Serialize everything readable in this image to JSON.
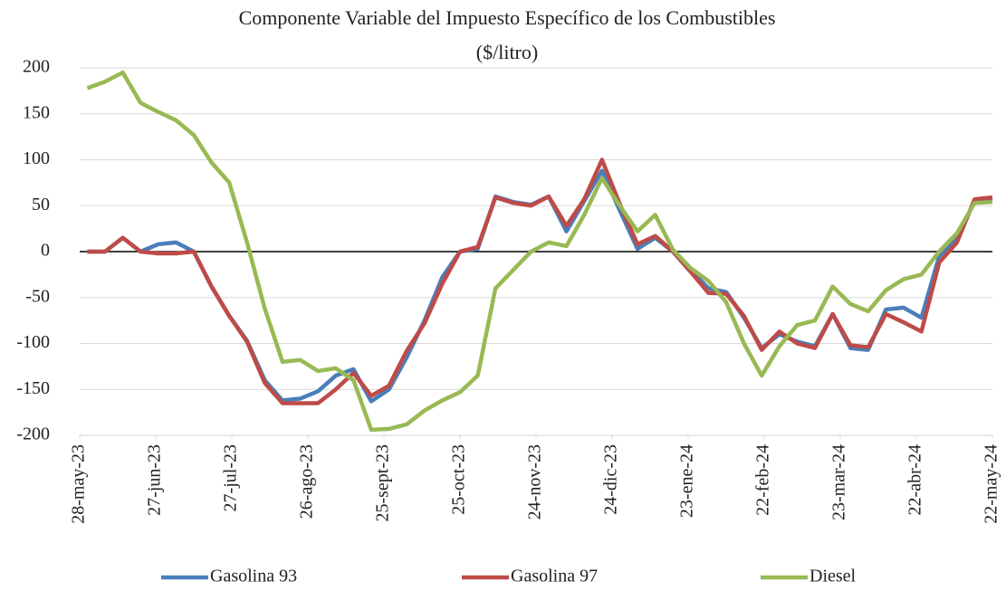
{
  "chart_data": {
    "type": "line",
    "title": "Componente Variable del Impuesto Específico de los Combustibles",
    "subtitle": "($/litro)",
    "x": [
      "2023-05-31",
      "2023-06-07",
      "2023-06-14",
      "2023-06-21",
      "2023-06-28",
      "2023-07-05",
      "2023-07-12",
      "2023-07-19",
      "2023-07-26",
      "2023-08-02",
      "2023-08-09",
      "2023-08-16",
      "2023-08-23",
      "2023-08-30",
      "2023-09-06",
      "2023-09-13",
      "2023-09-20",
      "2023-09-27",
      "2023-10-04",
      "2023-10-11",
      "2023-10-18",
      "2023-10-25",
      "2023-11-01",
      "2023-11-08",
      "2023-11-15",
      "2023-11-22",
      "2023-11-29",
      "2023-12-06",
      "2023-12-13",
      "2023-12-20",
      "2023-12-27",
      "2024-01-03",
      "2024-01-10",
      "2024-01-17",
      "2024-01-24",
      "2024-01-31",
      "2024-02-07",
      "2024-02-14",
      "2024-02-21",
      "2024-02-28",
      "2024-03-06",
      "2024-03-13",
      "2024-03-20",
      "2024-03-27",
      "2024-04-03",
      "2024-04-10",
      "2024-04-17",
      "2024-04-24",
      "2024-05-01",
      "2024-05-08",
      "2024-05-15",
      "2024-05-22"
    ],
    "series": [
      {
        "name": "Gasolina 93",
        "color": "#4a7ebb",
        "values": [
          0,
          0,
          15,
          0,
          8,
          10,
          0,
          -38,
          -70,
          -97,
          -140,
          -162,
          -160,
          -152,
          -135,
          -128,
          -163,
          -150,
          -115,
          -75,
          -28,
          0,
          3,
          60,
          54,
          51,
          60,
          22,
          55,
          88,
          45,
          3,
          15,
          0,
          -20,
          -40,
          -44,
          -72,
          -105,
          -90,
          -98,
          -103,
          -68,
          -105,
          -107,
          -63,
          -61,
          -72,
          -5,
          15,
          55,
          56
        ]
      },
      {
        "name": "Gasolina 97",
        "color": "#be4b48",
        "values": [
          0,
          0,
          15,
          0,
          -2,
          -2,
          0,
          -38,
          -70,
          -98,
          -143,
          -165,
          -165,
          -165,
          -150,
          -132,
          -157,
          -146,
          -108,
          -78,
          -35,
          0,
          5,
          59,
          53,
          50,
          60,
          28,
          57,
          100,
          52,
          8,
          17,
          0,
          -22,
          -45,
          -46,
          -70,
          -107,
          -87,
          -100,
          -105,
          -68,
          -102,
          -104,
          -68,
          -77,
          -87,
          -12,
          10,
          57,
          59
        ]
      },
      {
        "name": "Diesel",
        "color": "#98b954",
        "values": [
          178,
          185,
          195,
          162,
          152,
          143,
          127,
          97,
          75,
          10,
          -62,
          -120,
          -118,
          -130,
          -127,
          -140,
          -194,
          -193,
          -188,
          -173,
          -162,
          -153,
          -135,
          -40,
          -20,
          0,
          10,
          6,
          40,
          80,
          50,
          22,
          40,
          2,
          -18,
          -32,
          -55,
          -100,
          -135,
          -103,
          -80,
          -75,
          -38,
          -57,
          -65,
          -42,
          -30,
          -25,
          0,
          20,
          53,
          54
        ]
      }
    ],
    "xlim": [
      "2023-05-28",
      "2024-05-22"
    ],
    "xticks": [
      {
        "value": "2023-05-28",
        "label": "28-may-23"
      },
      {
        "value": "2023-06-27",
        "label": "27-jun-23"
      },
      {
        "value": "2023-07-27",
        "label": "27-jul-23"
      },
      {
        "value": "2023-08-26",
        "label": "26-ago-23"
      },
      {
        "value": "2023-09-25",
        "label": "25-sept-23"
      },
      {
        "value": "2023-10-25",
        "label": "25-oct-23"
      },
      {
        "value": "2023-11-24",
        "label": "24-nov-23"
      },
      {
        "value": "2023-12-24",
        "label": "24-dic-23"
      },
      {
        "value": "2024-01-23",
        "label": "23-ene-24"
      },
      {
        "value": "2024-02-22",
        "label": "22-feb-24"
      },
      {
        "value": "2024-03-23",
        "label": "23-mar-24"
      },
      {
        "value": "2024-04-22",
        "label": "22-abr-24"
      },
      {
        "value": "2024-05-22",
        "label": "22-may-24"
      }
    ],
    "ylim": [
      -200,
      200
    ],
    "yticks": [
      -200,
      -150,
      -100,
      -50,
      0,
      50,
      100,
      150,
      200
    ],
    "grid": true,
    "legend": "bottom"
  }
}
